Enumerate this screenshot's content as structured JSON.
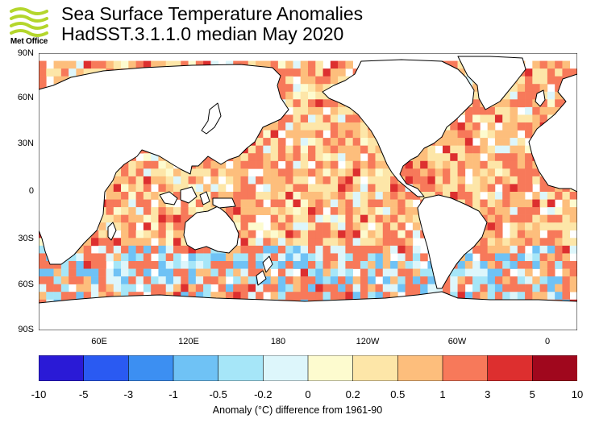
{
  "header": {
    "logo_text": "Met Office",
    "title_line1": "Sea Surface Temperature Anomalies",
    "title_line2": "HadSST.3.1.1.0 median May 2020"
  },
  "axes": {
    "lat_labels": [
      "90N",
      "60N",
      "30N",
      "0",
      "30S",
      "60S",
      "90S"
    ],
    "lon_labels": [
      "60E",
      "120E",
      "180",
      "120W",
      "60W",
      "0"
    ]
  },
  "colorbar": {
    "labels": [
      "-10",
      "-5",
      "-3",
      "-1",
      "-0.5",
      "-0.2",
      "0",
      "0.2",
      "0.5",
      "1",
      "3",
      "5",
      "10"
    ],
    "colors": [
      "#2a1ad6",
      "#2a5af2",
      "#3c8ff2",
      "#6fc2f5",
      "#a6e6f8",
      "#ddf6fb",
      "#fdfbcf",
      "#fde6a8",
      "#fdbe7c",
      "#f7795a",
      "#dd2f2f",
      "#a0071d"
    ],
    "caption": "Anomaly (°C) difference from 1961-90"
  },
  "map": {
    "land_color": "#ffffff",
    "coastline_color": "#000000",
    "missing_data_color": "#ffffff"
  }
}
